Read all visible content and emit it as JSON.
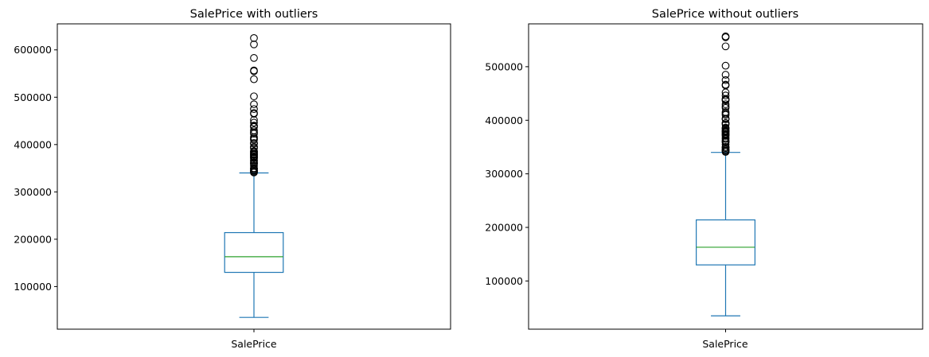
{
  "chart_data": [
    {
      "type": "box",
      "title": "SalePrice with outliers",
      "categories": [
        "SalePrice"
      ],
      "ylim": [
        10000,
        655000
      ],
      "yticks": [
        100000,
        200000,
        300000,
        400000,
        500000,
        600000
      ],
      "ytick_labels": [
        "100000",
        "200000",
        "300000",
        "400000",
        "500000",
        "600000"
      ],
      "grid": false,
      "box": {
        "whisker_low": 34900,
        "q1": 130000,
        "median": 163000,
        "q3": 214000,
        "whisker_high": 340000,
        "outliers": [
          341000,
          342643,
          343000,
          345000,
          345474,
          348000,
          350000,
          350000,
          355000,
          359100,
          360000,
          361919,
          365000,
          367294,
          370878,
          372402,
          374000,
          375000,
          377426,
          378500,
          380000,
          381000,
          383970,
          385000,
          386250,
          392000,
          394432,
          395000,
          402000,
          402861,
          403000,
          410000,
          412500,
          415298,
          423000,
          426000,
          430000,
          437154,
          438780,
          440000,
          446261,
          451950,
          465000,
          466500,
          475000,
          485000,
          501837,
          538000,
          555000,
          556581,
          582933,
          611657,
          625000
        ]
      }
    },
    {
      "type": "box",
      "title": "SalePrice without outliers",
      "categories": [
        "SalePrice"
      ],
      "ylim": [
        10000,
        580000
      ],
      "yticks": [
        100000,
        200000,
        300000,
        400000,
        500000
      ],
      "ytick_labels": [
        "100000",
        "200000",
        "300000",
        "400000",
        "500000"
      ],
      "grid": false,
      "box": {
        "whisker_low": 34900,
        "q1": 130000,
        "median": 163000,
        "q3": 214000,
        "whisker_high": 340000,
        "outliers": [
          341000,
          342643,
          343000,
          345000,
          345474,
          348000,
          350000,
          350000,
          355000,
          359100,
          360000,
          361919,
          365000,
          367294,
          370878,
          372402,
          374000,
          375000,
          377426,
          378500,
          380000,
          381000,
          383970,
          385000,
          386250,
          392000,
          394432,
          395000,
          402000,
          402861,
          403000,
          410000,
          412500,
          415298,
          423000,
          426000,
          430000,
          437154,
          438780,
          440000,
          446261,
          451950,
          465000,
          466500,
          475000,
          485000,
          501837,
          538000,
          555000,
          556581
        ]
      }
    }
  ],
  "colors": {
    "box": "#1f77b4",
    "median": "#2ca02c",
    "outlier_edge": "#000000"
  }
}
